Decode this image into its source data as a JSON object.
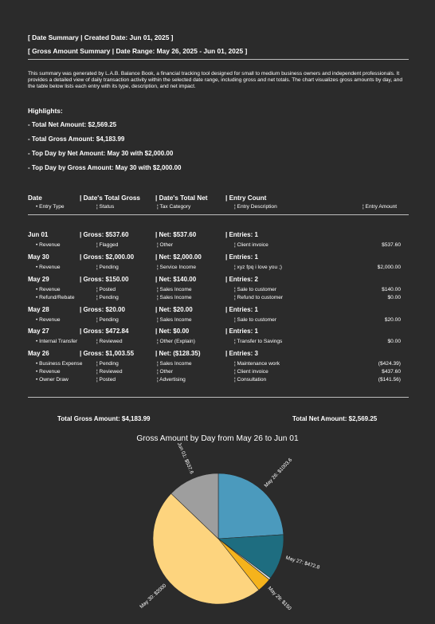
{
  "header": {
    "line1": "[ Date Summary  |  Created Date: Jun 01, 2025 ]",
    "line2": "[ Gross Amount Summary  |  Date Range: May 26, 2025 - Jun 01, 2025 ]"
  },
  "description": "This summary was generated by L.A.B. Balance Book, a financial tracking tool designed for small to medium business owners and independent professionals. It provides a detailed view of daily transaction activity within the selected date range, including gross and net totals. The chart visualizes gross amounts by day, and the table below lists each entry with its type, description, and net impact.",
  "highlights": {
    "title": "Highlights:",
    "items": [
      "- Total Net Amount: $2,569.25",
      "- Total Gross Amount: $4,183.99",
      "- Top Day by Net Amount: May 30 with $2,000.00",
      "- Top Day by Gross Amount: May 30 with $2,000.00"
    ]
  },
  "table": {
    "headers": [
      "Date",
      "|  Date's Total Gross",
      "|  Date's Total Net",
      "|  Entry Count"
    ],
    "subheaders": [
      "•  Entry Type",
      "¦  Status",
      "¦  Tax Category",
      "¦  Entry Description",
      "¦  Entry Amount"
    ],
    "groups": [
      {
        "date": "Jun 01",
        "gross": "|  Gross: $537.60",
        "net": "|  Net: $537.60",
        "count": "|  Entries: 1",
        "entries": [
          [
            "•  Revenue",
            "¦  Flagged",
            "¦  Other",
            "¦  Client invoice",
            "$537.60"
          ]
        ]
      },
      {
        "date": "May 30",
        "gross": "|  Gross: $2,000.00",
        "net": "|  Net: $2,000.00",
        "count": "|  Entries: 1",
        "entries": [
          [
            "•  Revenue",
            "¦  Pending",
            "¦  Service Income",
            "¦  xyz fpq i love you ;)",
            "$2,000.00"
          ]
        ]
      },
      {
        "date": "May 29",
        "gross": "|  Gross: $150.00",
        "net": "|  Net: $140.00",
        "count": "|  Entries: 2",
        "entries": [
          [
            "•  Revenue",
            "¦  Posted",
            "¦  Sales Income",
            "¦  Sale to customer",
            "$140.00"
          ],
          [
            "•  Refund/Rebate",
            "¦  Pending",
            "¦  Sales Income",
            "¦  Refund to customer",
            "$0.00"
          ]
        ]
      },
      {
        "date": "May 28",
        "gross": "|  Gross: $20.00",
        "net": "|  Net: $20.00",
        "count": "|  Entries: 1",
        "entries": [
          [
            "•  Revenue",
            "¦  Pending",
            "¦  Sales Income",
            "¦  Sale to customer",
            "$20.00"
          ]
        ]
      },
      {
        "date": "May 27",
        "gross": "|  Gross: $472.84",
        "net": "|  Net: $0.00",
        "count": "|  Entries: 1",
        "entries": [
          [
            "•  Internal Transfer",
            "¦  Reviewed",
            "¦  Other (Explain)",
            "¦  Transfer to Savings",
            "$0.00"
          ]
        ]
      },
      {
        "date": "May 26",
        "gross": "|  Gross: $1,003.55",
        "net": "|  Net: ($128.35)",
        "count": "|  Entries: 3",
        "entries": [
          [
            "•  Business Expense",
            "¦  Pending",
            "¦  Sales Income",
            "¦  Maintenance work",
            "($424.39)"
          ],
          [
            "•  Revenue",
            "¦  Reviewed",
            "¦  Other",
            "¦  Client invoice",
            "$437.60"
          ],
          [
            "•  Owner Draw",
            "¦  Posted",
            "¦  Advertising",
            "¦  Consultation",
            "($141.56)"
          ]
        ]
      }
    ]
  },
  "totals": {
    "gross": "Total Gross Amount: $4,183.99",
    "net": "Total Net Amount: $2,569.25"
  },
  "chart_data": {
    "type": "pie",
    "title": "Gross Amount by Day from May 26 to Jun 01",
    "start_angle_deg": 90,
    "direction": "clockwise",
    "slices": [
      {
        "label": "May 26: $1003.6",
        "value": 1003.55,
        "color": "#4b9abd"
      },
      {
        "label": "May 27: $472.8",
        "value": 472.84,
        "color": "#1e6d80"
      },
      {
        "label": "",
        "value": 20.0,
        "color": "#e8e8e8"
      },
      {
        "label": "May 29: $150",
        "value": 150.0,
        "color": "#f5b31c"
      },
      {
        "label": "May 30: $2000",
        "value": 2000.0,
        "color": "#fdd47e"
      },
      {
        "label": "Jun 01: $537.6",
        "value": 537.6,
        "color": "#9e9e9e"
      }
    ]
  }
}
